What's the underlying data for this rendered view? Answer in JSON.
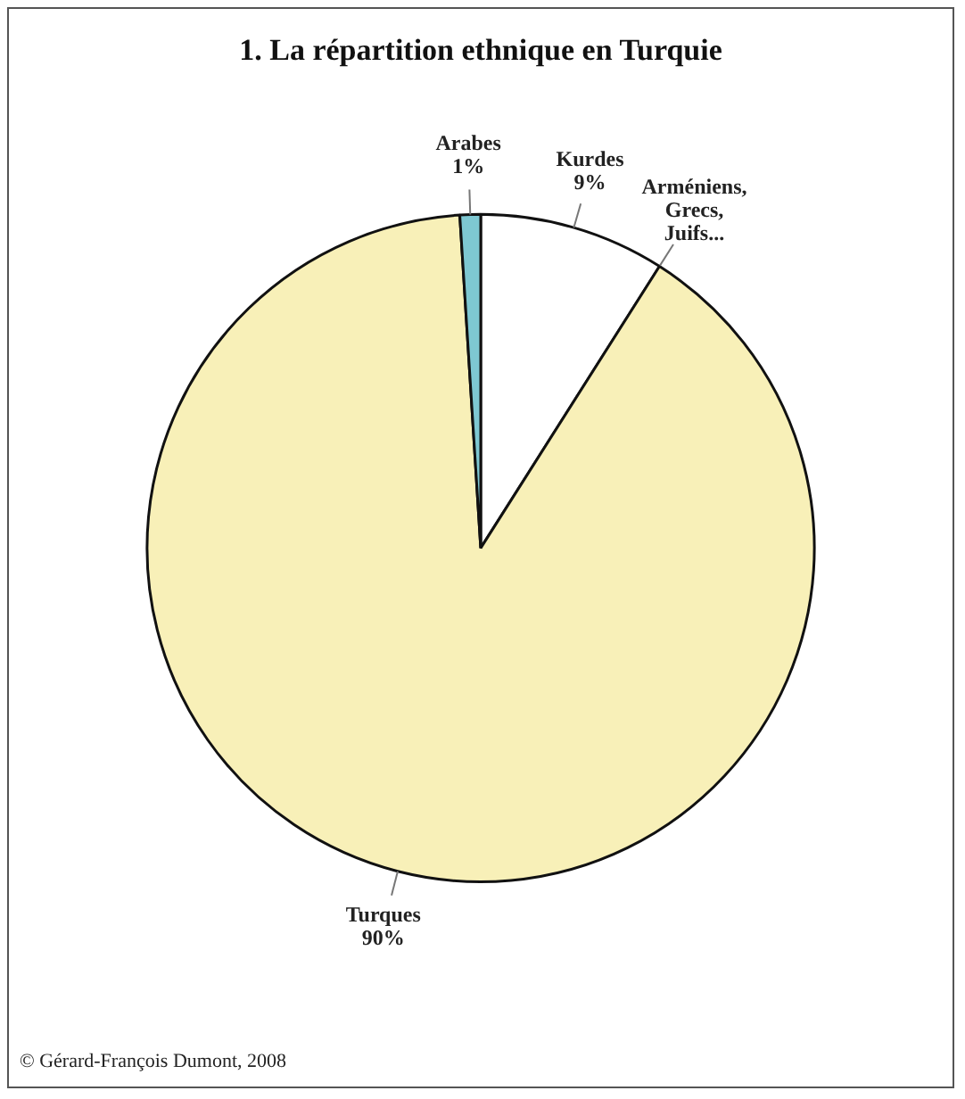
{
  "chart_data": {
    "type": "pie",
    "title": "1. La répartition ethnique en Turquie",
    "categories": [
      "Kurdes",
      "Arméniens, Grecs, Juifs...",
      "Turques",
      "Arabes"
    ],
    "values": [
      9,
      0,
      90,
      1
    ],
    "value_labels": [
      "9%",
      null,
      "90%",
      "1%"
    ],
    "colors": [
      "#ffffff",
      "#ffffff",
      "#f8f0b8",
      "#7ec8d2"
    ],
    "legend": false,
    "annotations": [
      "© Gérard-François Dumont, 2008"
    ]
  }
}
